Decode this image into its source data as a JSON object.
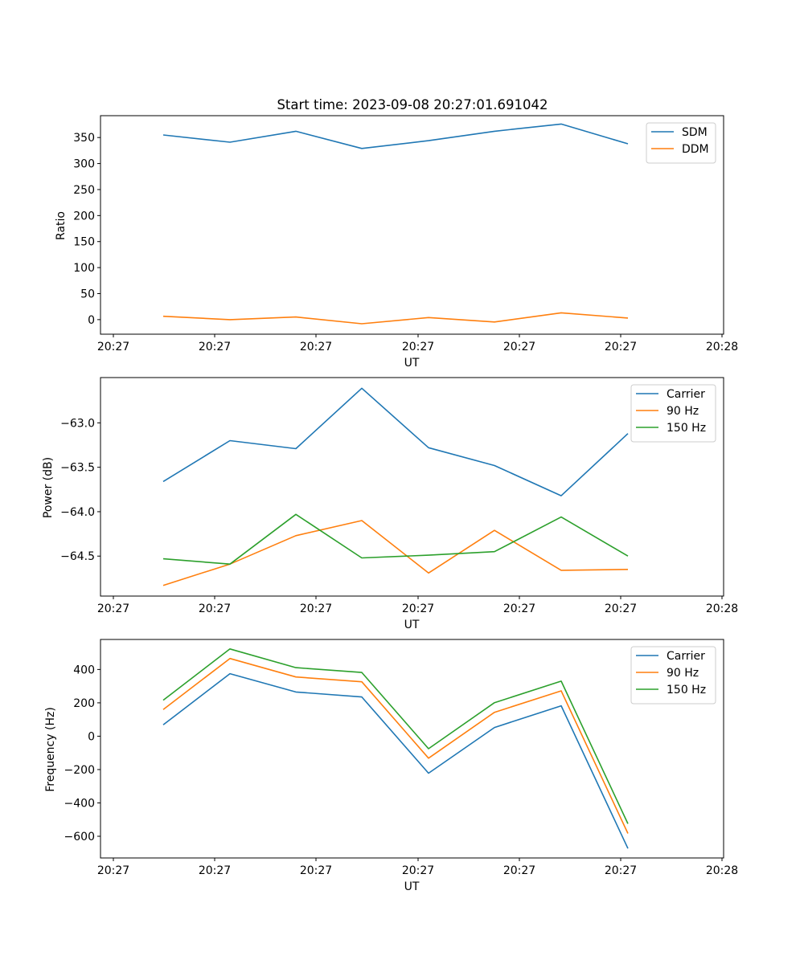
{
  "chart_data": [
    {
      "type": "line",
      "title": "Start time: 2023-09-08 20:27:01.691042",
      "xlabel": "UT",
      "ylabel": "Ratio",
      "x_tick_labels": [
        "20:27",
        "20:27",
        "20:27",
        "20:27",
        "20:27",
        "20:27",
        "20:28"
      ],
      "y_ticks": [
        0,
        50,
        100,
        150,
        200,
        250,
        300,
        350
      ],
      "ylim": [
        -28,
        392
      ],
      "legend_position": "top-right",
      "series": [
        {
          "name": "SDM",
          "color": "#1f77b4",
          "values": [
            355,
            341,
            362,
            329,
            344,
            362,
            376,
            338
          ]
        },
        {
          "name": "DDM",
          "color": "#ff7f0e",
          "values": [
            6.5,
            0,
            5,
            -8,
            4,
            -4.5,
            13,
            3
          ]
        }
      ]
    },
    {
      "type": "line",
      "title": "",
      "xlabel": "UT",
      "ylabel": "Power (dB)",
      "x_tick_labels": [
        "20:27",
        "20:27",
        "20:27",
        "20:27",
        "20:27",
        "20:27",
        "20:28"
      ],
      "y_ticks": [
        -64.5,
        -64.0,
        -63.5,
        -63.0
      ],
      "y_tick_labels": [
        "−64.5",
        "−64.0",
        "−63.5",
        "−63.0"
      ],
      "ylim": [
        -64.95,
        -62.49
      ],
      "legend_position": "top-right",
      "series": [
        {
          "name": "Carrier",
          "color": "#1f77b4",
          "values": [
            -63.66,
            -63.2,
            -63.29,
            -62.61,
            -63.28,
            -63.48,
            -63.82,
            -63.12
          ]
        },
        {
          "name": "90 Hz",
          "color": "#ff7f0e",
          "values": [
            -64.83,
            -64.59,
            -64.27,
            -64.1,
            -64.69,
            -64.21,
            -64.66,
            -64.65
          ]
        },
        {
          "name": "150 Hz",
          "color": "#2ca02c",
          "values": [
            -64.53,
            -64.59,
            -64.03,
            -64.52,
            -64.49,
            -64.45,
            -64.06,
            -64.5
          ]
        }
      ]
    },
    {
      "type": "line",
      "title": "",
      "xlabel": "UT",
      "ylabel": "Frequency (Hz)",
      "x_tick_labels": [
        "20:27",
        "20:27",
        "20:27",
        "20:27",
        "20:27",
        "20:27",
        "20:28"
      ],
      "y_ticks": [
        -600,
        -400,
        -200,
        0,
        200,
        400
      ],
      "y_tick_labels": [
        "−600",
        "−400",
        "−200",
        "0",
        "200",
        "400"
      ],
      "ylim": [
        -730,
        580
      ],
      "legend_position": "top-right",
      "series": [
        {
          "name": "Carrier",
          "color": "#1f77b4",
          "values": [
            68,
            375,
            265,
            235,
            -222,
            52,
            182,
            -673
          ]
        },
        {
          "name": "90 Hz",
          "color": "#ff7f0e",
          "values": [
            160,
            466,
            355,
            326,
            -132,
            143,
            272,
            -583
          ]
        },
        {
          "name": "150 Hz",
          "color": "#2ca02c",
          "values": [
            216,
            523,
            411,
            382,
            -75,
            201,
            330,
            -525
          ]
        }
      ]
    }
  ]
}
